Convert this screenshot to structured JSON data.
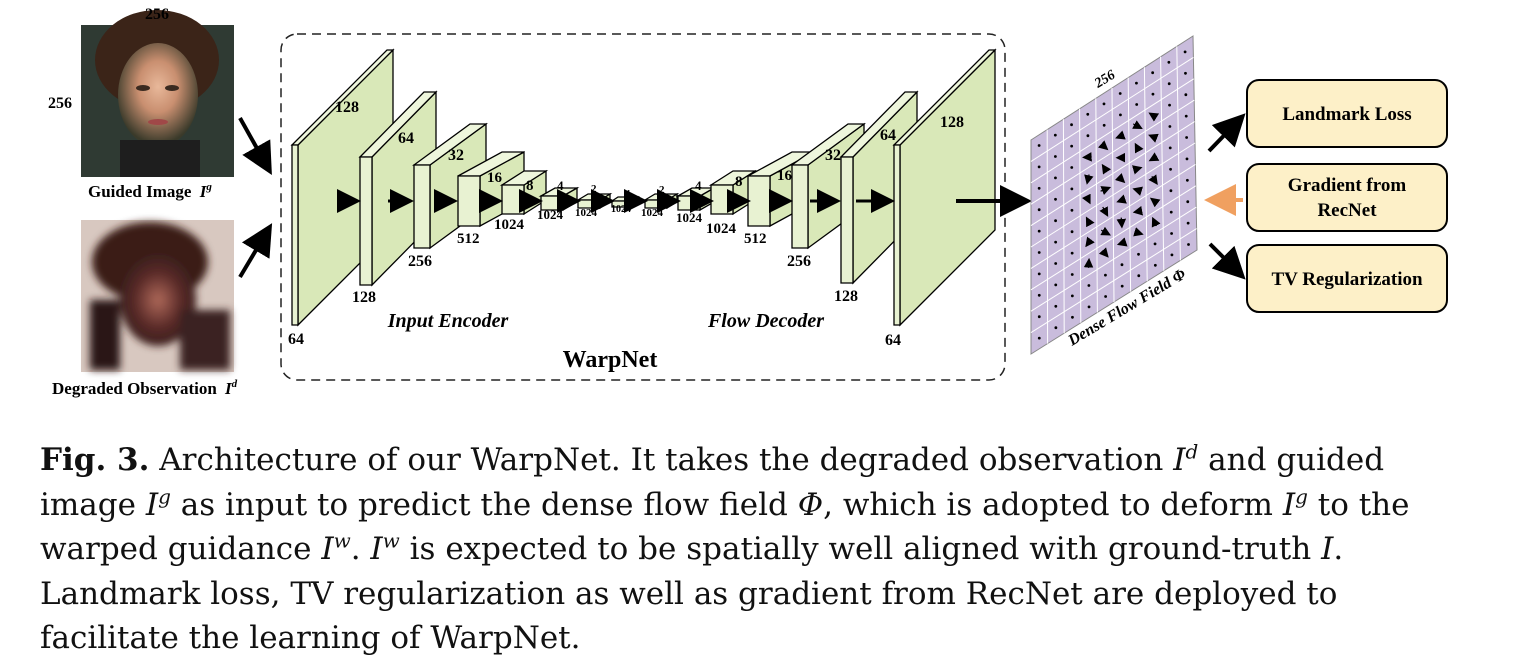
{
  "inputs": {
    "guided_size_top": "256",
    "guided_size_left": "256",
    "guided_caption": "Guided Image",
    "guided_symbol": "I",
    "guided_sup": "g",
    "degraded_caption": "Degraded Observation",
    "degraded_symbol": "I",
    "degraded_sup": "d"
  },
  "warpnet": {
    "title": "WarpNet",
    "encoder_label": "Input Encoder",
    "decoder_label": "Flow Decoder",
    "encoder_layers": [
      {
        "size": "128",
        "channels": "64"
      },
      {
        "size": "64",
        "channels": "128"
      },
      {
        "size": "32",
        "channels": "256"
      },
      {
        "size": "16",
        "channels": "512"
      },
      {
        "size": "8",
        "channels": "1024"
      },
      {
        "size": "4",
        "channels": "1024"
      },
      {
        "size": "2",
        "channels": "1024"
      },
      {
        "size": "1",
        "channels": "1024"
      }
    ],
    "decoder_layers": [
      {
        "size": "2",
        "channels": "1024"
      },
      {
        "size": "4",
        "channels": "1024"
      },
      {
        "size": "8",
        "channels": "1024"
      },
      {
        "size": "16",
        "channels": "512"
      },
      {
        "size": "32",
        "channels": "256"
      },
      {
        "size": "64",
        "channels": "128"
      },
      {
        "size": "128",
        "channels": "64"
      }
    ]
  },
  "flow_field": {
    "size_label": "256",
    "label": "Dense Flow Field Φ",
    "grid_color": "#c9bcdc"
  },
  "losses": {
    "landmark": "Landmark Loss",
    "gradient_line1": "Gradient from",
    "gradient_line2": "RecNet",
    "tv": "TV Regularization",
    "box_color": "#fdf0c8",
    "gradient_arrow_color": "#f0a060"
  },
  "colors": {
    "layer_front": "#d9e8b8",
    "layer_side": "#e8f2d2",
    "layer_top": "#eef6dc"
  },
  "caption": {
    "fig_label": "Fig. 3.",
    "p1": "Architecture of our WarpNet. It takes the degraded observation",
    "p2": "and guided image",
    "p3": "as input to predict the dense flow field",
    "phi": "Φ",
    "p4": ", which is adopted to deform",
    "p5": "to the warped guidance",
    "p6": ".",
    "p7": "is expected to be spatially well aligned with ground-truth",
    "p8": ". Landmark loss, TV regularization as well as gradient from RecNet are deployed to facilitate the learning of WarpNet.",
    "sym_I": "I",
    "sup_d": "d",
    "sup_g": "g",
    "sup_w": "w"
  }
}
